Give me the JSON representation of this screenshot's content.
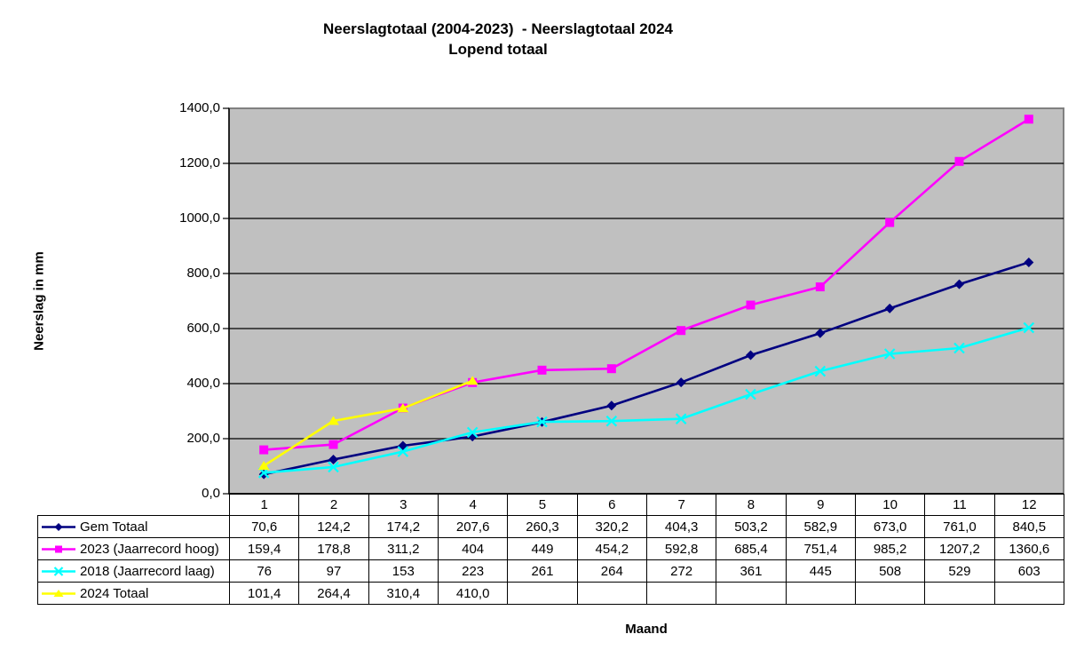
{
  "title": {
    "line1": "Neerslagtotaal (2004-2023)  - Neerslagtotaal 2024",
    "line2": "Lopend totaal"
  },
  "axes": {
    "y_label": "Neerslag in mm",
    "x_label": "Maand",
    "y_ticks": [
      "1400,0",
      "1200,0",
      "1000,0",
      "800,0",
      "600,0",
      "400,0",
      "200,0",
      "0,0"
    ]
  },
  "colors": {
    "page_bg": "#ffffff",
    "plot_bg": "#c0c0c0",
    "plot_border": "#808080",
    "grid": "#000000",
    "axis": "#000000",
    "table_border": "#000000",
    "series_gem": "#000080",
    "series_2023": "#ff00ff",
    "series_2018": "#00ffff",
    "series_2024": "#ffff00"
  },
  "chart_data": {
    "type": "line",
    "title": "Neerslagtotaal (2004-2023)  - Neerslagtotaal 2024 Lopend totaal",
    "xlabel": "Maand",
    "ylabel": "Neerslag in mm",
    "ylim": [
      0,
      1400
    ],
    "y_tick_step": 200,
    "grid": true,
    "legend_position": "table-left",
    "categories": [
      "1",
      "2",
      "3",
      "4",
      "5",
      "6",
      "7",
      "8",
      "9",
      "10",
      "11",
      "12"
    ],
    "series": [
      {
        "name": "Gem Totaal",
        "color": "#000080",
        "marker": "diamond",
        "values": [
          70.6,
          124.2,
          174.2,
          207.6,
          260.3,
          320.2,
          404.3,
          503.2,
          582.9,
          673.0,
          761.0,
          840.5
        ],
        "labels": [
          "70,6",
          "124,2",
          "174,2",
          "207,6",
          "260,3",
          "320,2",
          "404,3",
          "503,2",
          "582,9",
          "673,0",
          "761,0",
          "840,5"
        ]
      },
      {
        "name": "2023 (Jaarrecord hoog)",
        "color": "#ff00ff",
        "marker": "square",
        "values": [
          159.4,
          178.8,
          311.2,
          404,
          449,
          454.2,
          592.8,
          685.4,
          751.4,
          985.2,
          1207.2,
          1360.6
        ],
        "labels": [
          "159,4",
          "178,8",
          "311,2",
          "404",
          "449",
          "454,2",
          "592,8",
          "685,4",
          "751,4",
          "985,2",
          "1207,2",
          "1360,6"
        ]
      },
      {
        "name": "2018 (Jaarrecord laag)",
        "color": "#00ffff",
        "marker": "x",
        "values": [
          76,
          97,
          153,
          223,
          261,
          264,
          272,
          361,
          445,
          508,
          529,
          603
        ],
        "labels": [
          "76",
          "97",
          "153",
          "223",
          "261",
          "264",
          "272",
          "361",
          "445",
          "508",
          "529",
          "603"
        ]
      },
      {
        "name": "2024 Totaal",
        "color": "#ffff00",
        "marker": "triangle",
        "values": [
          101.4,
          264.4,
          310.4,
          410.0,
          null,
          null,
          null,
          null,
          null,
          null,
          null,
          null
        ],
        "labels": [
          "101,4",
          "264,4",
          "310,4",
          "410,0",
          "",
          "",
          "",
          "",
          "",
          "",
          "",
          ""
        ]
      }
    ]
  }
}
